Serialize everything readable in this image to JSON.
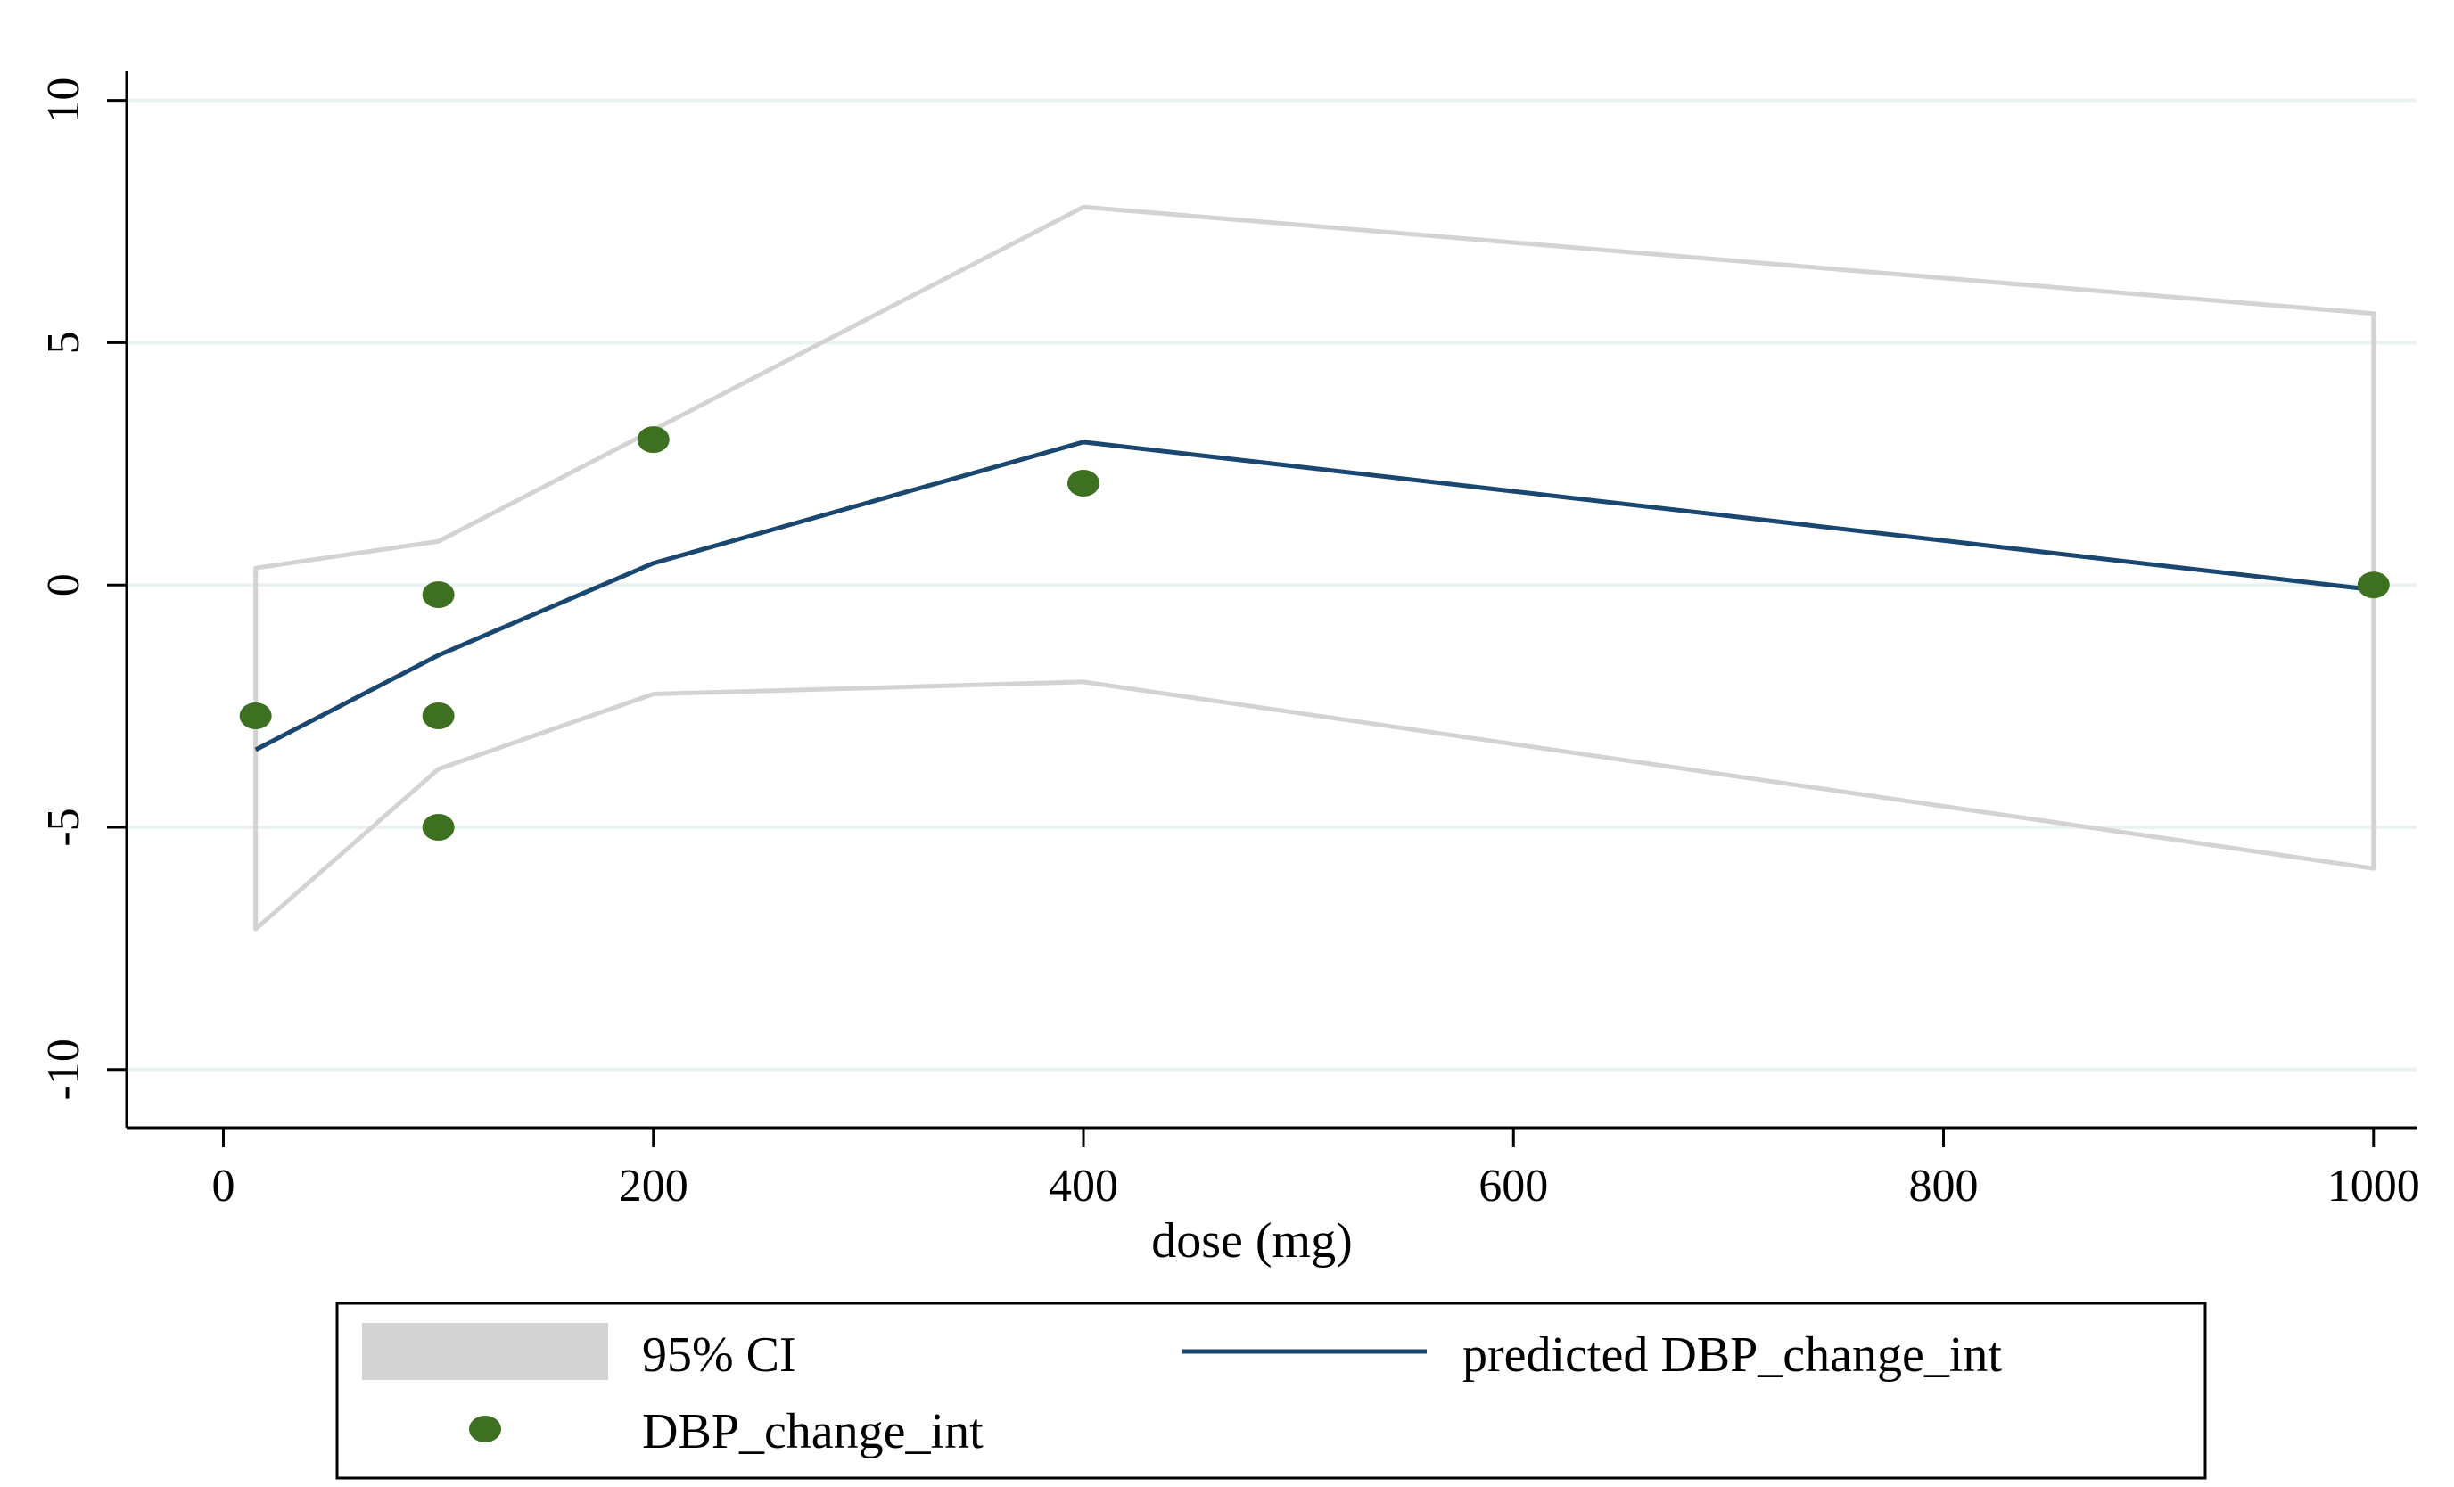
{
  "chart_data": {
    "type": "line",
    "title": "",
    "xlabel": "dose (mg)",
    "ylabel": "",
    "xlim": [
      -45,
      1020
    ],
    "ylim": [
      -11.2,
      10.6
    ],
    "x_ticks": [
      0,
      200,
      400,
      600,
      800,
      1000
    ],
    "y_ticks": [
      -10,
      -5,
      0,
      5,
      10
    ],
    "grid": true,
    "colors": {
      "ci": "#d3d3d3",
      "predicted": "#1a476f",
      "points": "#3d7021",
      "grid": "#eaf2f3"
    },
    "ci": {
      "name": "95% CI",
      "x": [
        15,
        100,
        200,
        400,
        1000
      ],
      "upper": [
        0.35,
        0.9,
        3.2,
        7.8,
        5.6
      ],
      "lower": [
        -7.1,
        -3.8,
        -2.25,
        -2.0,
        -5.85
      ]
    },
    "predicted": {
      "name": "predicted DBP_change_int",
      "x": [
        15,
        100,
        200,
        400,
        1000
      ],
      "y": [
        -3.4,
        -1.45,
        0.45,
        2.95,
        -0.1
      ]
    },
    "points": {
      "name": "DBP_change_int",
      "x": [
        15,
        100,
        100,
        100,
        200,
        400,
        1000
      ],
      "y": [
        -2.7,
        -0.2,
        -2.7,
        -5.0,
        3.0,
        2.1,
        0.0
      ]
    },
    "legend": {
      "position": "bottom",
      "entries": [
        "95% CI",
        "predicted DBP_change_int",
        "DBP_change_int"
      ]
    }
  }
}
